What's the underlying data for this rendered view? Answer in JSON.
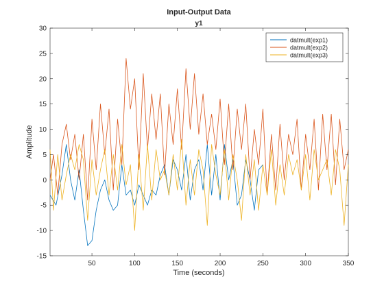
{
  "chart_data": {
    "type": "line",
    "title": "Input-Output Data",
    "subtitle": "y1",
    "xlabel": "Time (seconds)",
    "ylabel": "Amplitude",
    "xlim": [
      1,
      350
    ],
    "ylim": [
      -15,
      30
    ],
    "xticks": [
      50,
      100,
      150,
      200,
      250,
      300,
      350
    ],
    "yticks": [
      -15,
      -10,
      -5,
      0,
      5,
      10,
      15,
      20,
      25,
      30
    ],
    "grid": false,
    "legend_position": "top-right",
    "series": [
      {
        "name": "datmult(exp1)",
        "color": "#0072BD",
        "x": [
          1,
          8,
          15,
          20,
          25,
          30,
          35,
          40,
          45,
          50,
          55,
          60,
          65,
          70,
          75,
          80,
          85,
          90,
          95,
          100,
          105,
          110,
          115,
          120,
          125,
          130,
          135,
          140,
          145,
          150,
          155,
          160,
          165,
          170,
          175,
          180,
          185,
          190,
          195,
          200,
          205,
          210,
          215,
          220,
          225,
          230,
          235,
          240,
          245,
          250
        ],
        "y": [
          -3,
          -5,
          1,
          7,
          0,
          -4,
          2,
          -6,
          -13,
          -12,
          -6,
          -2,
          0,
          -4,
          -6,
          -5,
          3,
          -3,
          -2,
          -5,
          -1,
          -3,
          -5,
          -2,
          -3,
          1,
          3,
          -3,
          4,
          2,
          -2,
          5,
          -4,
          2,
          4,
          -2,
          7,
          -3,
          5,
          -4,
          7,
          0,
          4,
          -5,
          -3,
          4,
          0,
          -6,
          2,
          3
        ]
      },
      {
        "name": "datmult(exp2)",
        "color": "#D95319",
        "x": [
          1,
          5,
          10,
          15,
          20,
          25,
          30,
          35,
          40,
          45,
          50,
          55,
          60,
          65,
          70,
          75,
          80,
          85,
          90,
          95,
          100,
          105,
          110,
          115,
          120,
          125,
          130,
          135,
          140,
          145,
          150,
          155,
          160,
          165,
          170,
          175,
          180,
          185,
          190,
          195,
          200,
          205,
          210,
          215,
          220,
          225,
          230,
          235,
          240,
          245,
          250,
          255,
          260,
          265,
          270,
          275,
          280,
          285,
          290,
          295,
          300,
          305,
          310,
          315,
          320,
          325,
          330,
          335,
          340,
          345,
          350
        ],
        "y": [
          0,
          5,
          -3,
          7,
          11,
          4,
          9,
          0,
          9,
          -4,
          12,
          2,
          15,
          5,
          14,
          -2,
          12,
          3,
          24,
          14,
          20,
          2,
          21,
          6,
          17,
          8,
          17,
          1,
          15,
          7,
          18,
          6,
          22,
          10,
          21,
          9,
          17,
          7,
          13,
          6,
          16,
          3,
          15,
          2,
          14,
          6,
          15,
          0,
          10,
          3,
          14,
          -3,
          9,
          -2,
          11,
          0,
          9,
          5,
          12,
          -2,
          9,
          2,
          12,
          -2,
          13,
          2,
          13,
          -1,
          12,
          2,
          6
        ]
      },
      {
        "name": "datmult(exp3)",
        "color": "#EDB120",
        "x": [
          1,
          5,
          10,
          15,
          20,
          25,
          30,
          35,
          40,
          45,
          50,
          55,
          60,
          65,
          70,
          75,
          80,
          85,
          90,
          95,
          100,
          105,
          110,
          115,
          120,
          125,
          130,
          135,
          140,
          145,
          150,
          155,
          160,
          165,
          170,
          175,
          180,
          185,
          190,
          195,
          200,
          205,
          210,
          215,
          220,
          225,
          230,
          235,
          240,
          245,
          250,
          255,
          260,
          265,
          270,
          275,
          280,
          285,
          290,
          295,
          300,
          305,
          310,
          315,
          320,
          325,
          330,
          335,
          340,
          345,
          350
        ],
        "y": [
          6,
          -6,
          5,
          -4,
          1,
          5,
          2,
          7,
          4,
          -8,
          4,
          -3,
          2,
          6,
          -3,
          5,
          -2,
          7,
          -1,
          3,
          -10,
          5,
          -6,
          7,
          -4,
          6,
          0,
          2,
          -3,
          5,
          -2,
          8,
          -5,
          4,
          -3,
          6,
          2,
          -9,
          7,
          1,
          -3,
          6,
          -4,
          5,
          0,
          -8,
          5,
          -3,
          4,
          -6,
          3,
          -3,
          6,
          -5,
          3,
          -3,
          5,
          1,
          4,
          -2,
          5,
          -4,
          6,
          0,
          2,
          4,
          -3,
          6,
          2,
          -9,
          3
        ]
      }
    ]
  }
}
